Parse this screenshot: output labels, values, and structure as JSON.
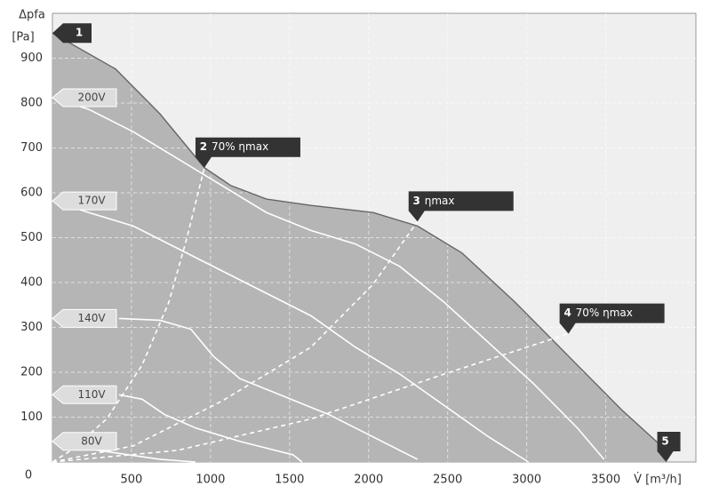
{
  "chart_data": {
    "type": "line",
    "y_label": "Δpfa",
    "y_unit": "[Pa]",
    "x_label": "V̇ [m³/h]",
    "xlim": [
      0,
      4070
    ],
    "ylim": [
      0,
      1000
    ],
    "xticks": [
      500,
      1000,
      1500,
      2000,
      2500,
      3000,
      3500
    ],
    "yticks": [
      0,
      100,
      200,
      300,
      400,
      500,
      600,
      700,
      800,
      900
    ],
    "grid": true,
    "area_color": "#b5b5b5",
    "background": "#efefef",
    "line_color": "#ffffff",
    "series": [
      {
        "style": "boundary",
        "color": "#666666",
        "x": [
          0,
          399,
          680,
          961,
          1129,
          1354,
          1635,
          2028,
          2309,
          2590,
          2927,
          3264,
          3601,
          3882
        ],
        "values": [
          956,
          876,
          776,
          656,
          616,
          586,
          572,
          556,
          526,
          466,
          356,
          236,
          116,
          26
        ]
      },
      {
        "name": "200V",
        "x": [
          0,
          230,
          511,
          792,
          1073,
          1354,
          1635,
          1916,
          2197,
          2478,
          2759,
          3039,
          3320,
          3489
        ],
        "values": [
          812,
          786,
          736,
          676,
          616,
          556,
          516,
          486,
          436,
          356,
          266,
          176,
          76,
          6
        ]
      },
      {
        "name": "170V",
        "x": [
          0,
          230,
          511,
          792,
          1073,
          1354,
          1635,
          1916,
          2197,
          2478,
          2759,
          3011
        ],
        "values": [
          582,
          556,
          526,
          476,
          426,
          376,
          326,
          256,
          196,
          126,
          56,
          0
        ]
      },
      {
        "name": "140V",
        "x": [
          421,
          680,
          876,
          1017,
          1185,
          1466,
          1747,
          2028,
          2309
        ],
        "values": [
          320,
          316,
          296,
          236,
          186,
          146,
          106,
          56,
          6
        ]
      },
      {
        "name": "110V",
        "x": [
          421,
          567,
          708,
          905,
          1185,
          1522,
          1579
        ],
        "values": [
          150,
          140,
          106,
          76,
          46,
          16,
          0
        ]
      },
      {
        "name": "80V",
        "x": [
          0,
          286,
          680,
          905
        ],
        "values": [
          46,
          26,
          6,
          0
        ]
      },
      {
        "style": "dashed",
        "x": [
          0,
          118,
          343,
          567,
          736,
          848,
          961
        ],
        "values": [
          0,
          26,
          96,
          216,
          356,
          496,
          656
        ]
      },
      {
        "style": "dashed",
        "x": [
          0,
          511,
          1073,
          1635,
          2028,
          2309
        ],
        "values": [
          0,
          36,
          136,
          256,
          396,
          536
        ]
      },
      {
        "style": "dashed",
        "x": [
          0,
          792,
          1635,
          2478,
          3264
        ],
        "values": [
          0,
          26,
          96,
          196,
          286
        ]
      }
    ],
    "annotations": [
      {
        "label": "1",
        "x": 0,
        "y": 956
      },
      {
        "label": "2",
        "text": "70% ηmax",
        "x": 961,
        "y": 656
      },
      {
        "label": "3",
        "text": "ηmax",
        "x": 2309,
        "y": 536
      },
      {
        "label": "4",
        "text": "70% ηmax",
        "x": 3264,
        "y": 286
      },
      {
        "label": "5",
        "x": 3882,
        "y": 0
      }
    ]
  }
}
